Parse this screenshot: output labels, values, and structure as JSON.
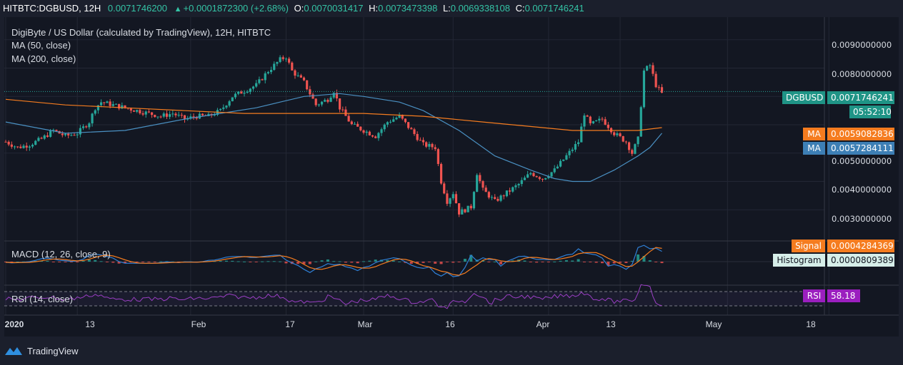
{
  "header": {
    "symbol": "HITBTC:DGBUSD, 12H",
    "last": "0.0071746200",
    "change": "+0.0001872300 (+2.68%)",
    "o_label": "O:",
    "o_value": "0.0070031417",
    "h_label": "H:",
    "h_value": "0.0073473398",
    "l_label": "L:",
    "l_value": "0.0069338108",
    "c_label": "C:",
    "c_value": "0.0071746241"
  },
  "legend": {
    "title": "DigiByte / US Dollar (calculated by TradingView), 12H, HITBTC",
    "ma50": "MA (50, close)",
    "ma200": "MA (200, close)",
    "macd": "MACD (12, 26, close, 9)",
    "rsi": "RSI (14, close)"
  },
  "tags": {
    "price_label": "DGBUSD",
    "price_value": "0.0071746241",
    "countdown": "05:52:10",
    "ma1_label": "MA",
    "ma1_value": "0.0059082836",
    "ma2_label": "MA",
    "ma2_value": "0.0057284111",
    "signal_label": "Signal",
    "signal_value": "0.0004284369",
    "hist_label": "Histogram",
    "hist_value": "0.0000809389",
    "rsi_label": "RSI",
    "rsi_value": "58.18"
  },
  "footer": {
    "brand": "TradingView"
  },
  "colors": {
    "up": "#26a69a",
    "down": "#ef5350",
    "ma50": "#4a90c2",
    "ma200": "#f57c1f",
    "macd": "#2f80d8",
    "signal": "#f57c1f",
    "rsi": "#9b3fc4",
    "price_tag": "#1f9486"
  },
  "chart_data": {
    "type": "candlestick",
    "title": "DigiByte / US Dollar (calculated by TradingView), 12H, HITBTC",
    "y_ticks": [
      "0.0090000000",
      "0.0080000000",
      "0.0050000000",
      "0.0040000000",
      "0.0030000000"
    ],
    "x_ticks": [
      {
        "label": "2020",
        "day": 0,
        "bold": true
      },
      {
        "label": "13",
        "day": 12
      },
      {
        "label": "Feb",
        "day": 31
      },
      {
        "label": "17",
        "day": 47
      },
      {
        "label": "Mar",
        "day": 60
      },
      {
        "label": "16",
        "day": 75
      },
      {
        "label": "Apr",
        "day": 91
      },
      {
        "label": "13",
        "day": 103
      },
      {
        "label": "May",
        "day": 121
      },
      {
        "label": "18",
        "day": 138
      }
    ],
    "price_series": [
      [
        0,
        0.0054
      ],
      [
        2,
        0.0052
      ],
      [
        4,
        0.0053
      ],
      [
        6,
        0.0055
      ],
      [
        8,
        0.0058
      ],
      [
        10,
        0.0056
      ],
      [
        12,
        0.0057
      ],
      [
        14,
        0.0061
      ],
      [
        15,
        0.0066
      ],
      [
        16,
        0.0068
      ],
      [
        18,
        0.0067
      ],
      [
        20,
        0.0066
      ],
      [
        22,
        0.0065
      ],
      [
        24,
        0.0064
      ],
      [
        26,
        0.0063
      ],
      [
        28,
        0.0064
      ],
      [
        30,
        0.0062
      ],
      [
        32,
        0.0063
      ],
      [
        34,
        0.0063
      ],
      [
        36,
        0.0065
      ],
      [
        38,
        0.007
      ],
      [
        40,
        0.0072
      ],
      [
        42,
        0.0074
      ],
      [
        44,
        0.0079
      ],
      [
        46,
        0.0083
      ],
      [
        47,
        0.0084
      ],
      [
        48,
        0.0079
      ],
      [
        50,
        0.0075
      ],
      [
        52,
        0.0067
      ],
      [
        54,
        0.0069
      ],
      [
        55,
        0.0072
      ],
      [
        56,
        0.0066
      ],
      [
        58,
        0.006
      ],
      [
        60,
        0.0058
      ],
      [
        62,
        0.0056
      ],
      [
        64,
        0.0061
      ],
      [
        66,
        0.0063
      ],
      [
        68,
        0.0058
      ],
      [
        70,
        0.0053
      ],
      [
        72,
        0.0052
      ],
      [
        73,
        0.004
      ],
      [
        74,
        0.0033
      ],
      [
        75,
        0.0036
      ],
      [
        76,
        0.0029
      ],
      [
        78,
        0.0031
      ],
      [
        79,
        0.0043
      ],
      [
        80,
        0.0037
      ],
      [
        82,
        0.0033
      ],
      [
        84,
        0.0036
      ],
      [
        86,
        0.0039
      ],
      [
        88,
        0.0043
      ],
      [
        90,
        0.0041
      ],
      [
        92,
        0.0044
      ],
      [
        94,
        0.0049
      ],
      [
        96,
        0.0054
      ],
      [
        97,
        0.0064
      ],
      [
        98,
        0.006
      ],
      [
        100,
        0.0062
      ],
      [
        102,
        0.0057
      ],
      [
        104,
        0.0054
      ],
      [
        105,
        0.005
      ],
      [
        106,
        0.0055
      ],
      [
        107,
        0.0079
      ],
      [
        108,
        0.0081
      ],
      [
        109,
        0.0074
      ],
      [
        110,
        0.0071
      ]
    ],
    "ma50_series": [
      [
        0,
        0.0061
      ],
      [
        10,
        0.0057
      ],
      [
        20,
        0.0058
      ],
      [
        30,
        0.0062
      ],
      [
        36,
        0.0064
      ],
      [
        42,
        0.0066
      ],
      [
        46,
        0.0068
      ],
      [
        50,
        0.007
      ],
      [
        56,
        0.0071
      ],
      [
        60,
        0.007
      ],
      [
        66,
        0.0068
      ],
      [
        70,
        0.0065
      ],
      [
        76,
        0.0058
      ],
      [
        82,
        0.0049
      ],
      [
        88,
        0.0044
      ],
      [
        92,
        0.0041
      ],
      [
        95,
        0.004
      ],
      [
        98,
        0.004
      ],
      [
        102,
        0.0044
      ],
      [
        106,
        0.0049
      ],
      [
        108,
        0.0052
      ],
      [
        110,
        0.0057
      ]
    ],
    "ma200_series": [
      [
        0,
        0.0069
      ],
      [
        10,
        0.0067
      ],
      [
        20,
        0.0066
      ],
      [
        30,
        0.0065
      ],
      [
        40,
        0.0064
      ],
      [
        50,
        0.0064
      ],
      [
        60,
        0.0064
      ],
      [
        70,
        0.0063
      ],
      [
        80,
        0.0061
      ],
      [
        90,
        0.0059
      ],
      [
        95,
        0.0058
      ],
      [
        100,
        0.0058
      ],
      [
        106,
        0.0058
      ],
      [
        110,
        0.0059
      ]
    ]
  }
}
